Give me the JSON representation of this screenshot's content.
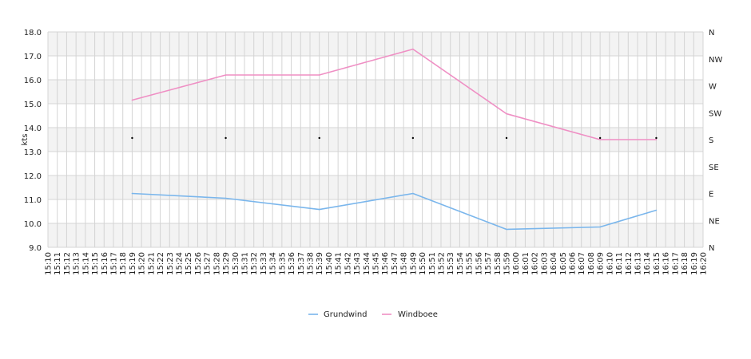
{
  "chart_data": {
    "type": "line",
    "ylabel": "kts",
    "ylim": [
      9,
      18
    ],
    "yticks": [
      "9.0",
      "10.0",
      "11.0",
      "12.0",
      "13.0",
      "14.0",
      "15.0",
      "16.0",
      "17.0",
      "18.0"
    ],
    "y2ticks": [
      "N",
      "NE",
      "E",
      "SE",
      "S",
      "SW",
      "W",
      "NW",
      "N"
    ],
    "x_ticks": [
      "15:10",
      "15:11",
      "15:12",
      "15:13",
      "15:14",
      "15:15",
      "15:16",
      "15:17",
      "15:18",
      "15:19",
      "15:20",
      "15:21",
      "15:22",
      "15:23",
      "15:24",
      "15:25",
      "15:26",
      "15:27",
      "15:28",
      "15:29",
      "15:30",
      "15:31",
      "15:32",
      "15:33",
      "15:34",
      "15:35",
      "15:36",
      "15:37",
      "15:38",
      "15:39",
      "15:40",
      "15:41",
      "15:42",
      "15:43",
      "15:44",
      "15:45",
      "15:46",
      "15:47",
      "15:48",
      "15:49",
      "15:50",
      "15:51",
      "15:52",
      "15:53",
      "15:54",
      "15:55",
      "15:56",
      "15:57",
      "15:58",
      "15:59",
      "16:00",
      "16:01",
      "16:02",
      "16:03",
      "16:04",
      "16:05",
      "16:06",
      "16:07",
      "16:08",
      "16:09",
      "16:10",
      "16:11",
      "16:12",
      "16:13",
      "16:14",
      "16:15",
      "16:16",
      "16:17",
      "16:18",
      "16:19",
      "16:20"
    ],
    "x": [
      "15:19",
      "15:29",
      "15:39",
      "15:49",
      "15:59",
      "16:09",
      "16:15"
    ],
    "series": [
      {
        "name": "Grundwind",
        "color": "#7ab6ec",
        "values": [
          11.25,
          11.05,
          10.58,
          11.25,
          9.75,
          9.85,
          10.55
        ]
      },
      {
        "name": "Windboee",
        "color": "#ef8fc4",
        "values": [
          15.15,
          16.2,
          16.2,
          17.28,
          14.58,
          13.5,
          13.5
        ]
      }
    ],
    "direction_markers": {
      "direction": "S",
      "x": [
        "15:19",
        "15:29",
        "15:39",
        "15:49",
        "15:59",
        "16:09",
        "16:15"
      ]
    },
    "grid": true,
    "band_colors": [
      "#f3f3f3",
      "#ffffff"
    ],
    "legend_position": "bottom-center"
  }
}
